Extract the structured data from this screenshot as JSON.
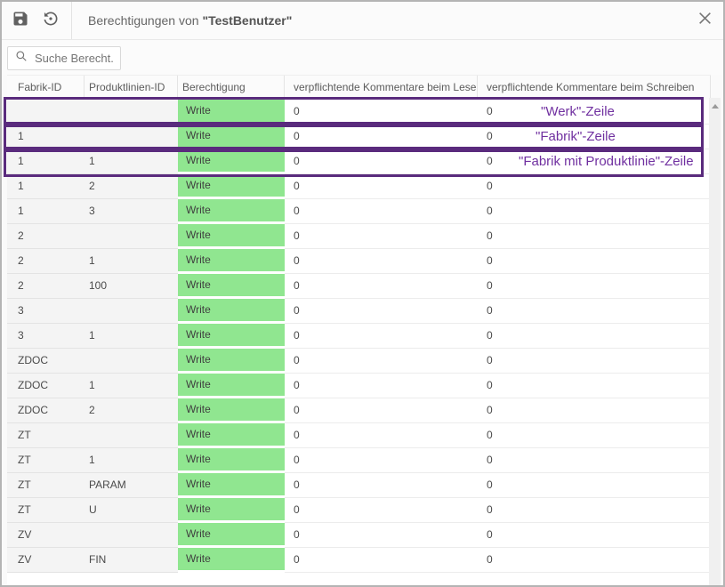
{
  "window": {
    "title_prefix": "Berechtigungen von ",
    "title_user": "\"TestBenutzer\""
  },
  "titlebar_icons": {
    "save": "save-icon",
    "restore": "history-restore-icon",
    "close": "close-icon"
  },
  "toolbar": {
    "search_placeholder": "Suche Berecht...",
    "search_icon": "search-icon"
  },
  "table": {
    "columns": [
      "Fabrik-ID",
      "Produktlinien-ID",
      "Berechtigung",
      "verpflichtende Kommentare beim Lesen",
      "verpflichtende Kommentare beim Schreiben"
    ],
    "rows": [
      {
        "fabrik_id": "",
        "produktlinien_id": "",
        "berechtigung": "Write",
        "kommentare_lesen": "0",
        "kommentare_schreiben": "0"
      },
      {
        "fabrik_id": "1",
        "produktlinien_id": "",
        "berechtigung": "Write",
        "kommentare_lesen": "0",
        "kommentare_schreiben": "0"
      },
      {
        "fabrik_id": "1",
        "produktlinien_id": "1",
        "berechtigung": "Write",
        "kommentare_lesen": "0",
        "kommentare_schreiben": "0"
      },
      {
        "fabrik_id": "1",
        "produktlinien_id": "2",
        "berechtigung": "Write",
        "kommentare_lesen": "0",
        "kommentare_schreiben": "0"
      },
      {
        "fabrik_id": "1",
        "produktlinien_id": "3",
        "berechtigung": "Write",
        "kommentare_lesen": "0",
        "kommentare_schreiben": "0"
      },
      {
        "fabrik_id": "2",
        "produktlinien_id": "",
        "berechtigung": "Write",
        "kommentare_lesen": "0",
        "kommentare_schreiben": "0"
      },
      {
        "fabrik_id": "2",
        "produktlinien_id": "1",
        "berechtigung": "Write",
        "kommentare_lesen": "0",
        "kommentare_schreiben": "0"
      },
      {
        "fabrik_id": "2",
        "produktlinien_id": "100",
        "berechtigung": "Write",
        "kommentare_lesen": "0",
        "kommentare_schreiben": "0"
      },
      {
        "fabrik_id": "3",
        "produktlinien_id": "",
        "berechtigung": "Write",
        "kommentare_lesen": "0",
        "kommentare_schreiben": "0"
      },
      {
        "fabrik_id": "3",
        "produktlinien_id": "1",
        "berechtigung": "Write",
        "kommentare_lesen": "0",
        "kommentare_schreiben": "0"
      },
      {
        "fabrik_id": "ZDOC",
        "produktlinien_id": "",
        "berechtigung": "Write",
        "kommentare_lesen": "0",
        "kommentare_schreiben": "0"
      },
      {
        "fabrik_id": "ZDOC",
        "produktlinien_id": "1",
        "berechtigung": "Write",
        "kommentare_lesen": "0",
        "kommentare_schreiben": "0"
      },
      {
        "fabrik_id": "ZDOC",
        "produktlinien_id": "2",
        "berechtigung": "Write",
        "kommentare_lesen": "0",
        "kommentare_schreiben": "0"
      },
      {
        "fabrik_id": "ZT",
        "produktlinien_id": "",
        "berechtigung": "Write",
        "kommentare_lesen": "0",
        "kommentare_schreiben": "0"
      },
      {
        "fabrik_id": "ZT",
        "produktlinien_id": "1",
        "berechtigung": "Write",
        "kommentare_lesen": "0",
        "kommentare_schreiben": "0"
      },
      {
        "fabrik_id": "ZT",
        "produktlinien_id": "PARAM",
        "berechtigung": "Write",
        "kommentare_lesen": "0",
        "kommentare_schreiben": "0"
      },
      {
        "fabrik_id": "ZT",
        "produktlinien_id": "U",
        "berechtigung": "Write",
        "kommentare_lesen": "0",
        "kommentare_schreiben": "0"
      },
      {
        "fabrik_id": "ZV",
        "produktlinien_id": "",
        "berechtigung": "Write",
        "kommentare_lesen": "0",
        "kommentare_schreiben": "0"
      },
      {
        "fabrik_id": "ZV",
        "produktlinien_id": "FIN",
        "berechtigung": "Write",
        "kommentare_lesen": "0",
        "kommentare_schreiben": "0"
      }
    ]
  },
  "annotations": [
    {
      "label": "\"Werk\"-Zeile"
    },
    {
      "label": "\"Fabrik\"-Zeile"
    },
    {
      "label": "\"Fabrik mit Produktlinie\"-Zeile"
    }
  ],
  "colors": {
    "berechtigung_green": "#90e690",
    "annotation_border_purple": "#5a2b7d",
    "annotation_text_purple": "#7030a0"
  }
}
